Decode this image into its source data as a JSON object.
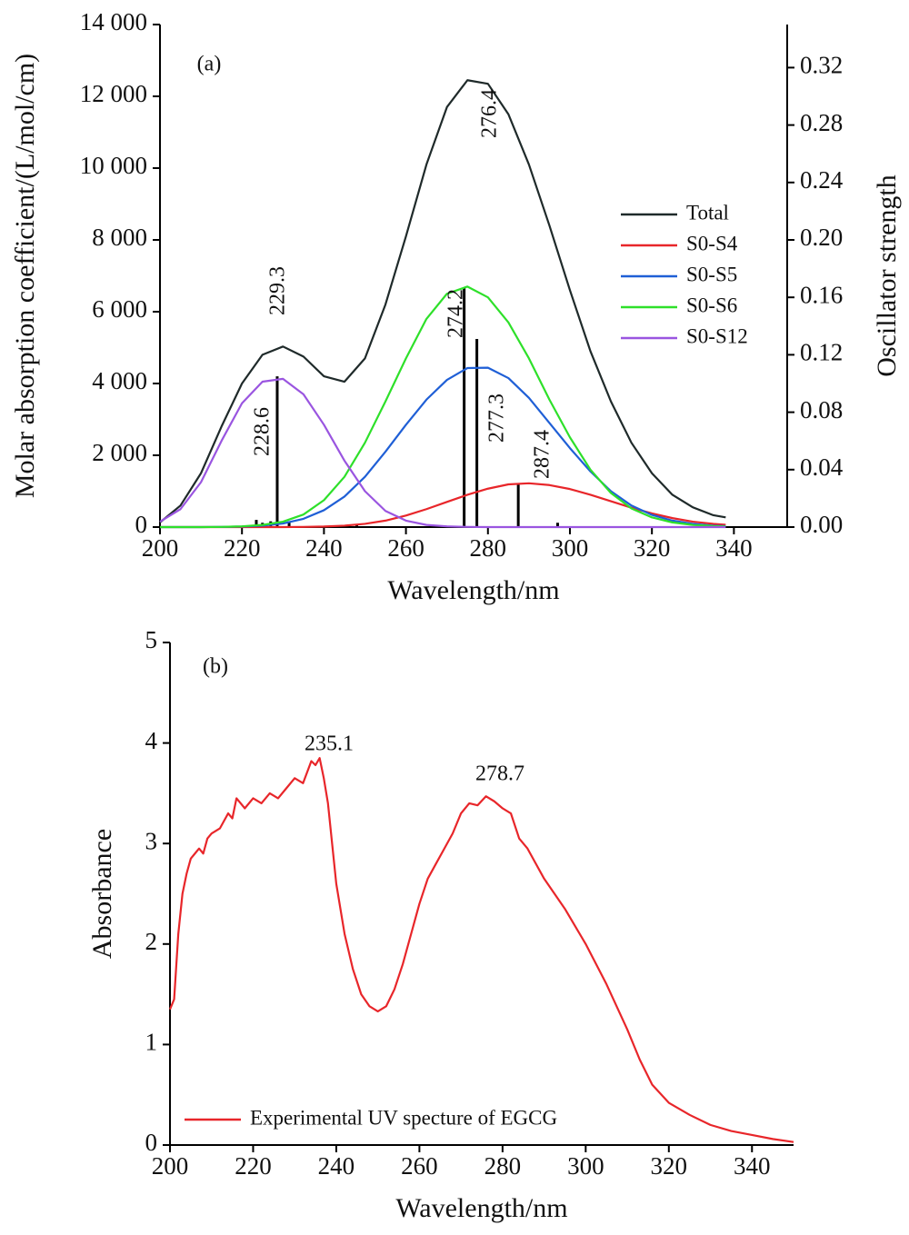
{
  "chart_data": [
    {
      "type": "line",
      "annotations": [
        "(a)",
        "229.3",
        "228.6",
        "274.2",
        "276.4",
        "277.3",
        "287.4"
      ],
      "xlabel": "Wavelength/nm",
      "ylabel": "Molar absorption coefficient/(L/mol/cm)",
      "y2label": "Oscillator strength",
      "xlim": [
        200,
        353
      ],
      "xticks": [
        200,
        220,
        240,
        260,
        280,
        300,
        320,
        340
      ],
      "ylim": [
        0,
        14000
      ],
      "yticks": [
        0,
        {
          "value": 2000,
          "label": "2 000"
        },
        {
          "value": 4000,
          "label": "4 000"
        },
        {
          "value": 6000,
          "label": "6 000"
        },
        {
          "value": 8000,
          "label": "8 000"
        },
        {
          "value": 10000,
          "label": "10 000"
        },
        {
          "value": 12000,
          "label": "12 000"
        },
        {
          "value": 14000,
          "label": "14 000"
        }
      ],
      "y2lim": [
        0,
        0.35
      ],
      "y2ticks": [
        {
          "value": 0,
          "label": "0.00"
        },
        {
          "value": 0.04,
          "label": "0.04"
        },
        {
          "value": 0.08,
          "label": "0.08"
        },
        {
          "value": 0.12,
          "label": "0.12"
        },
        {
          "value": 0.16,
          "label": "0.16"
        },
        {
          "value": 0.2,
          "label": "0.20"
        },
        {
          "value": 0.24,
          "label": "0.24"
        },
        {
          "value": 0.28,
          "label": "0.28"
        },
        {
          "value": 0.32,
          "label": "0.32"
        }
      ],
      "legend_loc": "right",
      "x": [
        200,
        205,
        210,
        215,
        220,
        225,
        230,
        235,
        240,
        245,
        250,
        255,
        260,
        265,
        270,
        275,
        280,
        285,
        290,
        295,
        300,
        305,
        310,
        315,
        320,
        325,
        330,
        335,
        338
      ],
      "series": [
        {
          "name": "Total",
          "color": "#1f2a2a",
          "values": [
            130,
            600,
            1500,
            2800,
            4000,
            4800,
            5030,
            4750,
            4200,
            4050,
            4700,
            6200,
            8100,
            10100,
            11700,
            12450,
            12350,
            11500,
            10100,
            8400,
            6600,
            4900,
            3500,
            2350,
            1500,
            900,
            550,
            330,
            270
          ]
        },
        {
          "name": "S0-S4",
          "color": "#e8262a",
          "values": [
            0,
            0,
            0,
            0,
            0,
            0,
            0,
            5,
            15,
            40,
            90,
            180,
            320,
            500,
            700,
            900,
            1070,
            1190,
            1220,
            1170,
            1060,
            900,
            720,
            540,
            380,
            250,
            150,
            90,
            65
          ]
        },
        {
          "name": "S0-S5",
          "color": "#1f5fd6",
          "values": [
            0,
            0,
            0,
            5,
            15,
            40,
            100,
            230,
            470,
            850,
            1400,
            2100,
            2850,
            3550,
            4100,
            4430,
            4440,
            4150,
            3600,
            2900,
            2200,
            1550,
            1000,
            600,
            340,
            180,
            90,
            40,
            25
          ]
        },
        {
          "name": "S0-S6",
          "color": "#2ee02a",
          "values": [
            0,
            0,
            0,
            5,
            20,
            60,
            150,
            350,
            750,
            1400,
            2350,
            3500,
            4700,
            5800,
            6500,
            6700,
            6400,
            5700,
            4700,
            3550,
            2500,
            1600,
            950,
            520,
            270,
            130,
            60,
            25,
            15
          ]
        },
        {
          "name": "S0-S12",
          "color": "#9a55e0",
          "values": [
            150,
            500,
            1250,
            2400,
            3450,
            4050,
            4130,
            3700,
            2850,
            1850,
            1000,
            450,
            180,
            60,
            20,
            5,
            0,
            0,
            0,
            0,
            0,
            0,
            0,
            0,
            0,
            0,
            0,
            0,
            0
          ]
        }
      ],
      "bars": {
        "axis": "y2",
        "color": "#000000",
        "x": [
          223.5,
          225,
          227,
          228.6,
          231.5,
          248,
          274.2,
          277.3,
          287.4,
          297
        ],
        "values": [
          0.005,
          0.003,
          0.004,
          0.105,
          0.004,
          0.002,
          0.167,
          0.131,
          0.03,
          0.003
        ]
      }
    },
    {
      "type": "line",
      "annotations": [
        "(b)",
        "235.1",
        "278.7"
      ],
      "xlabel": "Wavelength/nm",
      "ylabel": "Absorbance",
      "xlim": [
        200,
        350
      ],
      "xticks": [
        200,
        220,
        240,
        260,
        280,
        300,
        320,
        340
      ],
      "ylim": [
        0,
        5
      ],
      "yticks": [
        0,
        1,
        2,
        3,
        4,
        5
      ],
      "legend_loc": "lower left",
      "x": [
        200,
        201,
        202,
        203,
        204,
        205,
        206,
        207,
        208,
        209,
        210,
        212,
        214,
        215,
        216,
        218,
        220,
        222,
        224,
        226,
        228,
        230,
        232,
        234,
        235,
        236,
        237,
        238,
        239,
        240,
        242,
        244,
        246,
        248,
        250,
        252,
        254,
        256,
        258,
        260,
        262,
        264,
        266,
        268,
        270,
        272,
        274,
        276,
        278,
        280,
        282,
        284,
        286,
        290,
        295,
        300,
        305,
        310,
        313,
        316,
        320,
        325,
        330,
        335,
        340,
        345,
        350
      ],
      "series": [
        {
          "name": "Experimental UV specture of EGCG",
          "color": "#e8262a",
          "values": [
            1.35,
            1.45,
            2.1,
            2.5,
            2.7,
            2.85,
            2.9,
            2.95,
            2.9,
            3.05,
            3.1,
            3.15,
            3.3,
            3.25,
            3.45,
            3.35,
            3.45,
            3.4,
            3.5,
            3.45,
            3.55,
            3.65,
            3.6,
            3.82,
            3.78,
            3.85,
            3.65,
            3.4,
            3.0,
            2.6,
            2.1,
            1.75,
            1.5,
            1.38,
            1.33,
            1.38,
            1.55,
            1.8,
            2.1,
            2.4,
            2.65,
            2.8,
            2.95,
            3.1,
            3.3,
            3.4,
            3.38,
            3.47,
            3.42,
            3.35,
            3.3,
            3.05,
            2.95,
            2.65,
            2.35,
            2.0,
            1.6,
            1.15,
            0.85,
            0.6,
            0.42,
            0.3,
            0.2,
            0.14,
            0.1,
            0.06,
            0.03
          ]
        }
      ]
    }
  ]
}
